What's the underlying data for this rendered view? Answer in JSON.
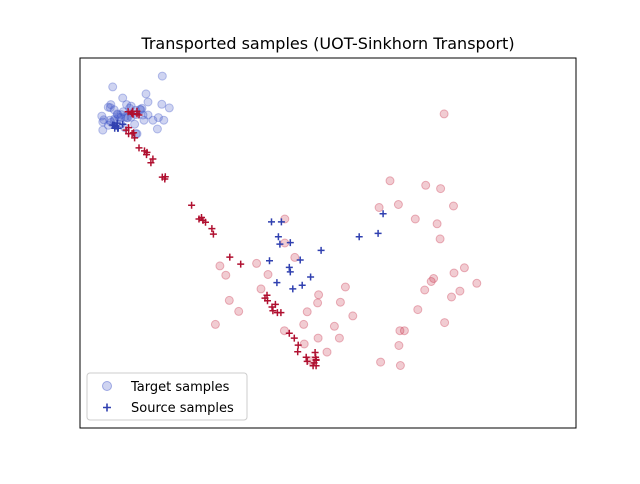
{
  "chart_data": {
    "type": "scatter",
    "title": "Transported samples (UOT-Sinkhorn Transport)",
    "xlabel": "",
    "ylabel": "",
    "xlim": [
      0,
      100
    ],
    "ylim": [
      0,
      100
    ],
    "grid": false,
    "axis_ticks_visible": false,
    "legend": {
      "location": "lower-left",
      "entries": [
        "Target samples",
        "Source samples"
      ]
    },
    "colors": {
      "target_blue": "#4055c8",
      "target_red": "#c8324a",
      "source_blue": "#3040b0",
      "source_red": "#b01030"
    },
    "target_points": {
      "name": "Target samples",
      "marker": "circle",
      "alpha": 0.25,
      "clusters": [
        {
          "color_key": "target_blue",
          "points": [
            [
              6.6,
              92.2
            ],
            [
              16.6,
              95.1
            ],
            [
              10.3,
              87.0
            ],
            [
              13.3,
              90.3
            ],
            [
              13.7,
              88.1
            ],
            [
              8.6,
              89.2
            ],
            [
              4.6,
              80.5
            ],
            [
              6.2,
              87.4
            ],
            [
              12.7,
              84.6
            ],
            [
              16.5,
              87.5
            ],
            [
              11.0,
              82.1
            ],
            [
              15.6,
              80.8
            ],
            [
              16.9,
              83.2
            ],
            [
              5.7,
              81.8
            ],
            [
              11.5,
              79.5
            ],
            [
              9.0,
              81.2
            ],
            [
              4.4,
              84.3
            ],
            [
              7.0,
              83.6
            ],
            [
              9.6,
              83.8
            ],
            [
              4.8,
              83.3
            ],
            [
              6.0,
              83.2
            ],
            [
              14.7,
              83.2
            ],
            [
              6.9,
              86.0
            ],
            [
              8.3,
              84.7
            ],
            [
              12.3,
              86.0
            ],
            [
              11.3,
              79.5
            ],
            [
              15.8,
              83.9
            ],
            [
              12.9,
              83.2
            ],
            [
              12.1,
              86.1
            ],
            [
              18.0,
              86.5
            ],
            [
              10.0,
              86.4
            ],
            [
              12.5,
              86.4
            ],
            [
              13.7,
              84.6
            ],
            [
              6.3,
              82.6
            ],
            [
              10.3,
              84.0
            ],
            [
              8.7,
              85.5
            ],
            [
              9.4,
              87.4
            ],
            [
              8.2,
              83.9
            ],
            [
              11.2,
              85.9
            ],
            [
              5.7,
              86.7
            ],
            [
              9.4,
              83.9
            ],
            [
              9.1,
              84.1
            ],
            [
              8.2,
              82.2
            ],
            [
              6.1,
              86.6
            ],
            [
              4.6,
              82.7
            ],
            [
              11.3,
              84.7
            ],
            [
              7.6,
              84.7
            ],
            [
              6.9,
              83.1
            ],
            [
              7.5,
              84.9
            ],
            [
              7.8,
              84.0
            ]
          ]
        },
        {
          "color_key": "target_red",
          "points": [
            [
              73.4,
              84.9
            ],
            [
              62.5,
              66.8
            ],
            [
              69.7,
              65.6
            ],
            [
              64.2,
              60.4
            ],
            [
              72.0,
              55.2
            ],
            [
              67.6,
              56.5
            ],
            [
              72.7,
              64.7
            ],
            [
              75.3,
              60.0
            ],
            [
              72.6,
              51.1
            ],
            [
              71.3,
              40.4
            ],
            [
              69.5,
              37.3
            ],
            [
              70.8,
              39.6
            ],
            [
              77.5,
              43.3
            ],
            [
              80.0,
              39.1
            ],
            [
              76.6,
              37.0
            ],
            [
              75.4,
              41.9
            ],
            [
              73.5,
              28.5
            ],
            [
              65.4,
              26.3
            ],
            [
              64.5,
              26.3
            ],
            [
              68.1,
              32.0
            ],
            [
              74.9,
              35.4
            ],
            [
              64.3,
              22.3
            ],
            [
              60.6,
              17.8
            ],
            [
              64.6,
              16.9
            ],
            [
              55.0,
              30.3
            ],
            [
              53.5,
              38.1
            ],
            [
              52.5,
              34.0
            ],
            [
              51.3,
              27.5
            ],
            [
              52.3,
              24.3
            ],
            [
              48.1,
              36.0
            ],
            [
              47.9,
              33.8
            ],
            [
              45.8,
              31.4
            ],
            [
              48.0,
              24.3
            ],
            [
              45.2,
              22.7
            ],
            [
              45.1,
              28.0
            ],
            [
              46.6,
              18.2
            ],
            [
              41.2,
              26.3
            ],
            [
              49.8,
              20.5
            ],
            [
              43.3,
              46.1
            ],
            [
              41.3,
              50.0
            ],
            [
              37.9,
              41.5
            ],
            [
              35.6,
              44.5
            ],
            [
              36.5,
              37.6
            ],
            [
              32.0,
              31.5
            ],
            [
              30.1,
              34.5
            ],
            [
              29.4,
              41.3
            ],
            [
              27.3,
              28.0
            ],
            [
              28.2,
              43.8
            ],
            [
              41.3,
              56.5
            ],
            [
              60.3,
              59.6
            ]
          ]
        }
      ]
    },
    "source_points": {
      "name": "Source samples",
      "marker": "plus",
      "clusters": [
        {
          "color_key": "source_blue",
          "points": [
            [
              6.6,
              81.9
            ],
            [
              8.6,
              82.1
            ],
            [
              7.6,
              81.0
            ],
            [
              7.3,
              81.6
            ],
            [
              7.5,
              82.4
            ],
            [
              6.9,
              81.8
            ],
            [
              7.0,
              81.0
            ],
            [
              7.7,
              81.0
            ],
            [
              38.6,
              55.7
            ],
            [
              40.0,
              51.7
            ],
            [
              40.3,
              49.7
            ],
            [
              42.4,
              50.1
            ],
            [
              48.6,
              48.0
            ],
            [
              56.3,
              51.7
            ],
            [
              61.1,
              57.9
            ],
            [
              60.1,
              52.6
            ],
            [
              40.6,
              55.7
            ],
            [
              46.5,
              40.8
            ],
            [
              42.2,
              43.4
            ],
            [
              42.4,
              42.2
            ],
            [
              39.7,
              39.3
            ],
            [
              38.2,
              45.2
            ],
            [
              44.8,
              38.6
            ],
            [
              42.9,
              37.6
            ],
            [
              44.4,
              45.4
            ]
          ]
        },
        {
          "color_key": "source_red",
          "points": [
            [
              11.5,
              85.6
            ],
            [
              10.7,
              84.8
            ],
            [
              11.5,
              84.9
            ],
            [
              11.9,
              84.6
            ],
            [
              10.6,
              84.9
            ],
            [
              10.6,
              85.6
            ],
            [
              10.4,
              85.1
            ],
            [
              9.7,
              85.5
            ],
            [
              9.8,
              81.2
            ],
            [
              9.3,
              80.5
            ],
            [
              9.8,
              79.5
            ],
            [
              10.8,
              79.8
            ],
            [
              10.5,
              79.6
            ],
            [
              11.0,
              78.4
            ],
            [
              11.9,
              75.7
            ],
            [
              13.0,
              74.9
            ],
            [
              13.4,
              73.9
            ],
            [
              13.5,
              74.5
            ],
            [
              14.7,
              72.7
            ],
            [
              14.3,
              71.7
            ],
            [
              17.1,
              67.3
            ],
            [
              17.2,
              67.9
            ],
            [
              16.6,
              67.8
            ],
            [
              22.5,
              60.2
            ],
            [
              24.0,
              56.5
            ],
            [
              24.5,
              56.9
            ],
            [
              24.8,
              56.1
            ],
            [
              25.3,
              55.6
            ],
            [
              26.6,
              53.9
            ],
            [
              26.9,
              52.4
            ],
            [
              30.2,
              46.2
            ],
            [
              32.4,
              44.3
            ],
            [
              37.3,
              35.1
            ],
            [
              37.7,
              35.9
            ],
            [
              37.8,
              34.4
            ],
            [
              38.7,
              32.7
            ],
            [
              39.4,
              33.4
            ],
            [
              38.9,
              31.7
            ],
            [
              39.8,
              31.2
            ],
            [
              40.5,
              31.2
            ],
            [
              45.8,
              18.0
            ],
            [
              45.6,
              19.1
            ],
            [
              44.0,
              22.4
            ],
            [
              43.9,
              20.6
            ],
            [
              43.2,
              24.3
            ],
            [
              42.2,
              25.6
            ],
            [
              47.4,
              20.4
            ],
            [
              47.6,
              18.5
            ],
            [
              47.2,
              17.6
            ],
            [
              47.6,
              16.8
            ],
            [
              47.0,
              16.8
            ],
            [
              47.6,
              18.3
            ],
            [
              47.5,
              19.1
            ]
          ]
        }
      ]
    }
  }
}
